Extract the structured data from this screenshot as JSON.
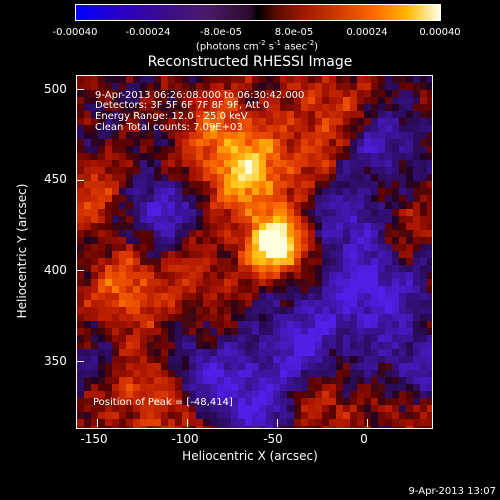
{
  "colorbar": {
    "labels": [
      "-0.00040",
      "-0.00024",
      "-8.0e-05",
      "8.0e-05",
      "0.00024",
      "0.00040"
    ],
    "units_main": "(photons cm",
    "units_exp1": "-2",
    "units_s": " s",
    "units_exp2": "-1",
    "units_asec": " asec",
    "units_exp3": "-2",
    "units_close": ")"
  },
  "title": "Reconstructed RHESSI Image",
  "annotations": {
    "time_range": "9-Apr-2013 06:26:08.000 to 06:30:42.000",
    "detectors": "Detectors: 3F 5F 6F 7F 8F 9F, Att 0",
    "energy": "Energy Range: 12.0 - 25.0 keV",
    "clean": "Clean     Total counts: 7.09E+03",
    "peak": "Position of Peak = [-48,414]"
  },
  "axes": {
    "xlabel": "Heliocentric X (arcsec)",
    "ylabel": "Heliocentric Y (arcsec)",
    "xticks": [
      "-150",
      "-100",
      "-50",
      "0"
    ],
    "yticks": [
      "500",
      "450",
      "400",
      "350"
    ]
  },
  "timestamp": "9-Apr-2013 13:07"
}
